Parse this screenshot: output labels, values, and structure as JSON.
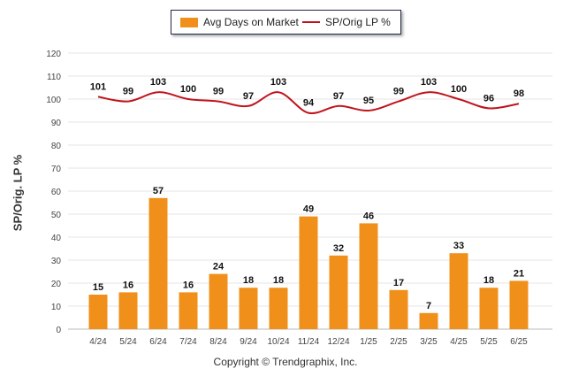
{
  "chart_data": {
    "type": "bar+line",
    "categories": [
      "4/24",
      "5/24",
      "6/24",
      "7/24",
      "8/24",
      "9/24",
      "10/24",
      "11/24",
      "12/24",
      "1/25",
      "2/25",
      "3/25",
      "4/25",
      "5/25",
      "6/25"
    ],
    "series": [
      {
        "name": "Avg Days on Market",
        "type": "bar",
        "color": "#f0901a",
        "values": [
          15,
          16,
          57,
          16,
          24,
          18,
          18,
          49,
          32,
          46,
          17,
          7,
          33,
          18,
          21
        ]
      },
      {
        "name": "SP/Orig LP %",
        "type": "line",
        "color": "#c0141c",
        "values": [
          101,
          99,
          103,
          100,
          99,
          97,
          103,
          94,
          97,
          95,
          99,
          103,
          100,
          96,
          98
        ]
      }
    ],
    "ylabel": "SP/Orig. LP %",
    "ylim": [
      0,
      120
    ],
    "yticks": [
      0,
      10,
      20,
      30,
      40,
      50,
      60,
      70,
      80,
      90,
      100,
      110,
      120
    ],
    "grid": true,
    "legend_position": "top-center"
  },
  "footer": {
    "copyright": "Copyright © Trendgraphix, Inc."
  }
}
